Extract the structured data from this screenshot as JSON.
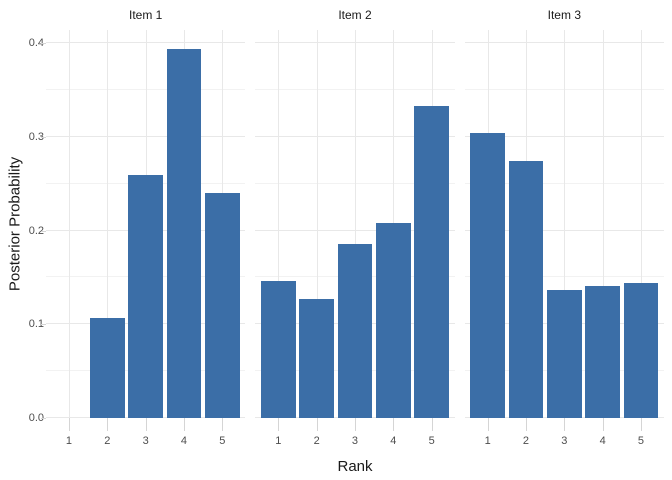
{
  "chart_data": {
    "type": "bar",
    "title": "",
    "xlabel": "Rank",
    "ylabel": "Posterior Probability",
    "categories": [
      "1",
      "2",
      "3",
      "4",
      "5"
    ],
    "facets": [
      {
        "label": "Item 1",
        "values": [
          0,
          0.107,
          0.259,
          0.394,
          0.24
        ]
      },
      {
        "label": "Item 2",
        "values": [
          0.146,
          0.127,
          0.186,
          0.208,
          0.333
        ]
      },
      {
        "label": "Item 3",
        "values": [
          0.304,
          0.274,
          0.137,
          0.141,
          0.144
        ]
      }
    ],
    "ylim": [
      0,
      0.414
    ],
    "yticks": [
      0,
      0.1,
      0.2,
      0.3,
      0.4
    ],
    "ytick_labels": [
      "0.0",
      "0.1",
      "0.2",
      "0.3",
      "0.4"
    ],
    "yticks_minor": [
      0.05,
      0.15,
      0.25,
      0.35
    ],
    "grid": "horizontal major+minor, vertical major at each rank; no panel border; white background",
    "legend": "none",
    "bar_width_fraction": 0.9,
    "x_units_span": [
      0.4,
      5.6
    ],
    "colors": {
      "bar": "#3B6EA7",
      "grid_major": "#E8E8E8",
      "grid_minor": "#F2F2F2",
      "tick_mark": "#D5D5D5",
      "tick_label": "#4D4D4D",
      "axis_title": "#1A1A1A",
      "facet_label": "#1A1A1A",
      "background": "#FFFFFF"
    }
  }
}
